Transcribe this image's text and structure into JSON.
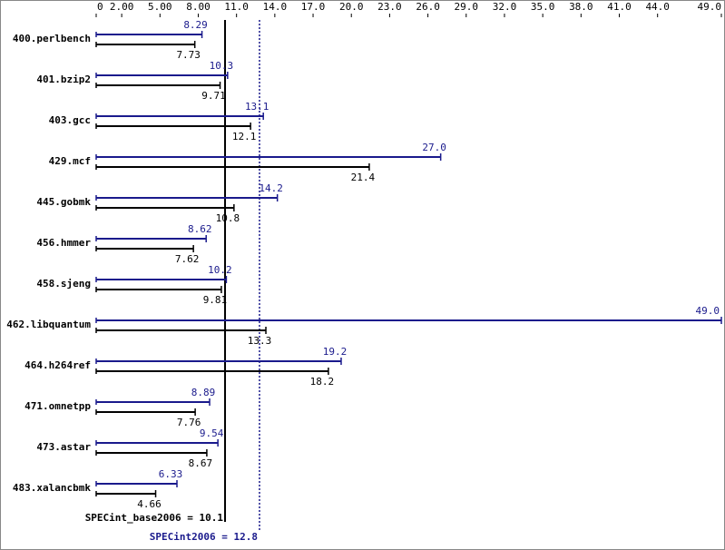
{
  "chart_data": {
    "type": "bar",
    "orientation": "horizontal",
    "categories": [
      "400.perlbench",
      "401.bzip2",
      "403.gcc",
      "429.mcf",
      "445.gobmk",
      "456.hmmer",
      "458.sjeng",
      "462.libquantum",
      "464.h264ref",
      "471.omnetpp",
      "473.astar",
      "483.xalancbmk"
    ],
    "series": [
      {
        "color": "#1a1a8c",
        "values": [
          8.29,
          10.3,
          13.1,
          27.0,
          14.2,
          8.62,
          10.2,
          49.0,
          19.2,
          8.89,
          9.54,
          6.33
        ],
        "value_labels": [
          "8.29",
          "10.3",
          "13.1",
          "27.0",
          "14.2",
          "8.62",
          "10.2",
          "49.0",
          "19.2",
          "8.89",
          "9.54",
          "6.33"
        ]
      },
      {
        "color": "#000000",
        "values": [
          7.73,
          9.71,
          12.1,
          21.4,
          10.8,
          7.62,
          9.81,
          13.3,
          18.2,
          7.76,
          8.67,
          4.66
        ],
        "value_labels": [
          "7.73",
          "9.71",
          "12.1",
          "21.4",
          "10.8",
          "7.62",
          "9.81",
          "13.3",
          "18.2",
          "7.76",
          "8.67",
          "4.66"
        ]
      }
    ],
    "xlim": [
      0,
      49.0
    ],
    "xticks": [
      0,
      {
        "value": 2,
        "label": "2.00"
      },
      {
        "value": 5,
        "label": "5.00"
      },
      {
        "value": 8,
        "label": "8.00"
      },
      {
        "value": 11,
        "label": "11.0"
      },
      {
        "value": 14,
        "label": "14.0"
      },
      {
        "value": 17,
        "label": "17.0"
      },
      {
        "value": 20,
        "label": "20.0"
      },
      {
        "value": 23,
        "label": "23.0"
      },
      {
        "value": 26,
        "label": "26.0"
      },
      {
        "value": 29,
        "label": "29.0"
      },
      {
        "value": 32,
        "label": "32.0"
      },
      {
        "value": 35,
        "label": "35.0"
      },
      {
        "value": 38,
        "label": "38.0"
      },
      {
        "value": 41,
        "label": "41.0"
      },
      {
        "value": 44,
        "label": "44.0"
      },
      {
        "value": 49,
        "label": "49.0"
      }
    ],
    "reference_lines": [
      {
        "label": "SPECint_base2006 = 10.1",
        "value": 10.1,
        "color": "#000000",
        "style": "solid"
      },
      {
        "label": "SPECint2006 = 12.8",
        "value": 12.8,
        "color": "#1a1a8c",
        "style": "dotted"
      }
    ]
  }
}
